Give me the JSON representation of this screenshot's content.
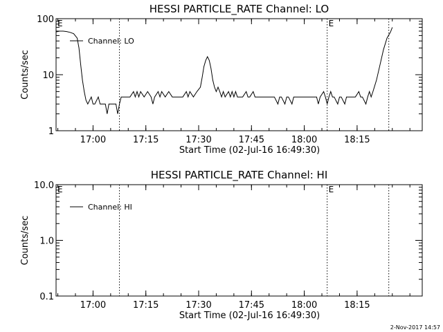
{
  "chart_data": [
    {
      "type": "line",
      "title": "HESSI PARTICLE_RATE Channel: LO",
      "xlabel": "Start Time (02-Jul-16 16:49:30)",
      "ylabel": "Counts/sec",
      "yscale": "log",
      "ylim": [
        1,
        100
      ],
      "yticks": [
        1,
        10,
        100
      ],
      "ytick_labels": [
        "1",
        "10",
        "100"
      ],
      "xlim_minutes": [
        0,
        104
      ],
      "xticks": [
        10.5,
        25.5,
        40.5,
        55.5,
        70.5,
        85.5
      ],
      "xtick_labels": [
        "17:00",
        "17:15",
        "17:30",
        "17:45",
        "18:00",
        "18:15"
      ],
      "vlines": [
        18.0,
        77.0,
        94.5
      ],
      "event_markers": [
        {
          "x": 0.0,
          "label": "E"
        },
        {
          "x": 77.0,
          "label": "E"
        }
      ],
      "legend": "top-left",
      "series": [
        {
          "name": "Channel: LO",
          "points": [
            [
              0,
              58
            ],
            [
              1,
              60
            ],
            [
              2,
              60
            ],
            [
              3,
              59
            ],
            [
              4,
              57
            ],
            [
              5,
              54
            ],
            [
              6,
              45
            ],
            [
              6.5,
              30
            ],
            [
              7,
              15
            ],
            [
              7.5,
              8
            ],
            [
              8,
              5
            ],
            [
              8.5,
              3.5
            ],
            [
              9,
              3
            ],
            [
              10,
              4
            ],
            [
              10.5,
              3
            ],
            [
              11,
              3
            ],
            [
              12,
              4
            ],
            [
              12.5,
              3
            ],
            [
              13,
              3
            ],
            [
              14,
              3
            ],
            [
              14.5,
              2
            ],
            [
              15,
              3
            ],
            [
              16,
              3
            ],
            [
              17,
              3
            ],
            [
              17.5,
              2
            ],
            [
              18,
              3
            ],
            [
              18.5,
              4
            ],
            [
              20,
              4
            ],
            [
              21,
              4
            ],
            [
              22,
              5
            ],
            [
              22.5,
              4
            ],
            [
              23,
              5
            ],
            [
              23.5,
              4
            ],
            [
              24,
              5
            ],
            [
              25,
              4
            ],
            [
              26,
              5
            ],
            [
              27,
              4
            ],
            [
              27.5,
              3
            ],
            [
              28,
              4
            ],
            [
              29,
              5
            ],
            [
              29.5,
              4
            ],
            [
              30,
              5
            ],
            [
              31,
              4
            ],
            [
              32,
              5
            ],
            [
              33,
              4
            ],
            [
              34,
              4
            ],
            [
              35,
              4
            ],
            [
              36,
              4
            ],
            [
              37,
              5
            ],
            [
              37.5,
              4
            ],
            [
              38,
              5
            ],
            [
              39,
              4
            ],
            [
              40,
              5
            ],
            [
              41,
              6
            ],
            [
              41.5,
              9
            ],
            [
              42,
              14
            ],
            [
              42.5,
              18
            ],
            [
              43,
              21
            ],
            [
              43.5,
              18
            ],
            [
              44,
              13
            ],
            [
              44.5,
              8
            ],
            [
              45,
              6
            ],
            [
              45.5,
              5
            ],
            [
              46,
              6
            ],
            [
              46.5,
              5
            ],
            [
              47,
              4
            ],
            [
              47.5,
              5
            ],
            [
              48,
              4
            ],
            [
              49,
              5
            ],
            [
              49.5,
              4
            ],
            [
              50,
              5
            ],
            [
              50.5,
              4
            ],
            [
              51,
              5
            ],
            [
              51.5,
              4
            ],
            [
              52,
              4
            ],
            [
              53,
              4
            ],
            [
              54,
              5
            ],
            [
              54.5,
              4
            ],
            [
              55,
              4
            ],
            [
              56,
              5
            ],
            [
              56.5,
              4
            ],
            [
              57,
              4
            ],
            [
              58,
              4
            ],
            [
              59,
              4
            ],
            [
              60,
              4
            ],
            [
              61,
              4
            ],
            [
              62,
              4
            ],
            [
              63,
              3
            ],
            [
              63.5,
              4
            ],
            [
              64,
              4
            ],
            [
              65,
              3
            ],
            [
              65.5,
              4
            ],
            [
              66,
              4
            ],
            [
              67,
              3
            ],
            [
              67.5,
              4
            ],
            [
              68,
              4
            ],
            [
              69,
              4
            ],
            [
              70,
              4
            ],
            [
              71,
              4
            ],
            [
              72,
              4
            ],
            [
              73,
              4
            ],
            [
              74,
              4
            ],
            [
              74.5,
              3
            ],
            [
              75,
              4
            ],
            [
              76,
              5
            ],
            [
              76.5,
              4
            ],
            [
              77,
              3
            ],
            [
              77.5,
              4
            ],
            [
              78,
              5
            ],
            [
              78.5,
              4
            ],
            [
              79,
              4
            ],
            [
              80,
              3
            ],
            [
              80.5,
              4
            ],
            [
              81,
              4
            ],
            [
              82,
              3
            ],
            [
              82.5,
              4
            ],
            [
              83,
              4
            ],
            [
              84,
              4
            ],
            [
              85,
              4
            ],
            [
              86,
              5
            ],
            [
              86.5,
              4
            ],
            [
              87,
              4
            ],
            [
              88,
              3
            ],
            [
              88.5,
              4
            ],
            [
              89,
              5
            ],
            [
              89.5,
              4
            ],
            [
              90,
              5
            ],
            [
              91,
              8
            ],
            [
              92,
              15
            ],
            [
              93,
              28
            ],
            [
              94,
              45
            ],
            [
              95,
              58
            ],
            [
              95.5,
              70
            ]
          ]
        }
      ]
    },
    {
      "type": "line",
      "title": "HESSI PARTICLE_RATE Channel: HI",
      "xlabel": "Start Time (02-Jul-16 16:49:30)",
      "ylabel": "Counts/sec",
      "yscale": "log",
      "ylim": [
        0.1,
        10
      ],
      "yticks": [
        0.1,
        1,
        10
      ],
      "ytick_labels": [
        "0.1",
        "1.0",
        "10.0"
      ],
      "xlim_minutes": [
        0,
        104
      ],
      "xticks": [
        10.5,
        25.5,
        40.5,
        55.5,
        70.5,
        85.5
      ],
      "xtick_labels": [
        "17:00",
        "17:15",
        "17:30",
        "17:45",
        "18:00",
        "18:15"
      ],
      "vlines": [
        18.0,
        77.0,
        94.5
      ],
      "event_markers": [
        {
          "x": 0.0,
          "label": "E"
        },
        {
          "x": 77.0,
          "label": "E"
        }
      ],
      "legend": "top-left",
      "series": [
        {
          "name": "Channel: HI",
          "points": []
        }
      ]
    }
  ],
  "footer": {
    "timestamp": "2-Nov-2017 14:57"
  }
}
